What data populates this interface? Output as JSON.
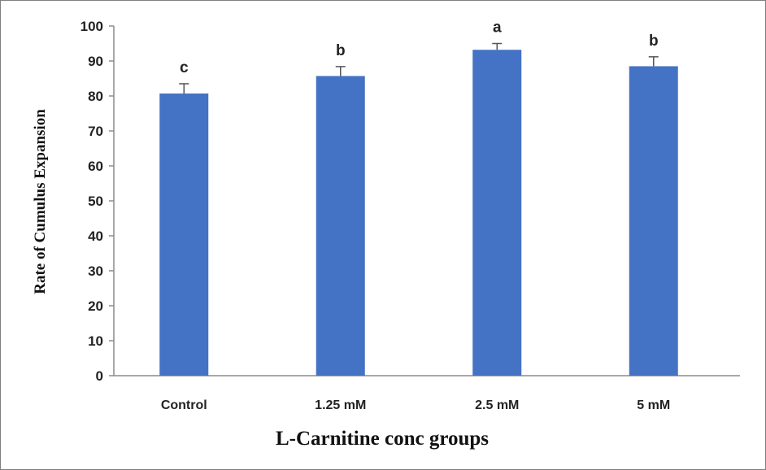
{
  "chart_data": {
    "type": "bar",
    "title": "",
    "xlabel": "L-Carnitine  conc groups",
    "ylabel": "Rate of Cumulus  Expansion",
    "categories": [
      "Control",
      "1.25 mM",
      "2.5 mM",
      "5 mM"
    ],
    "values": [
      80.7,
      85.7,
      93.2,
      88.5
    ],
    "error_upper": [
      83.5,
      88.4,
      95.0,
      91.2
    ],
    "significance_letters": [
      "c",
      "b",
      "a",
      "b"
    ],
    "ylim": [
      0,
      100
    ],
    "yticks": [
      0,
      10,
      20,
      30,
      40,
      50,
      60,
      70,
      80,
      90,
      100
    ],
    "grid": false,
    "legend": "none",
    "bar_color": "#4472c4"
  }
}
